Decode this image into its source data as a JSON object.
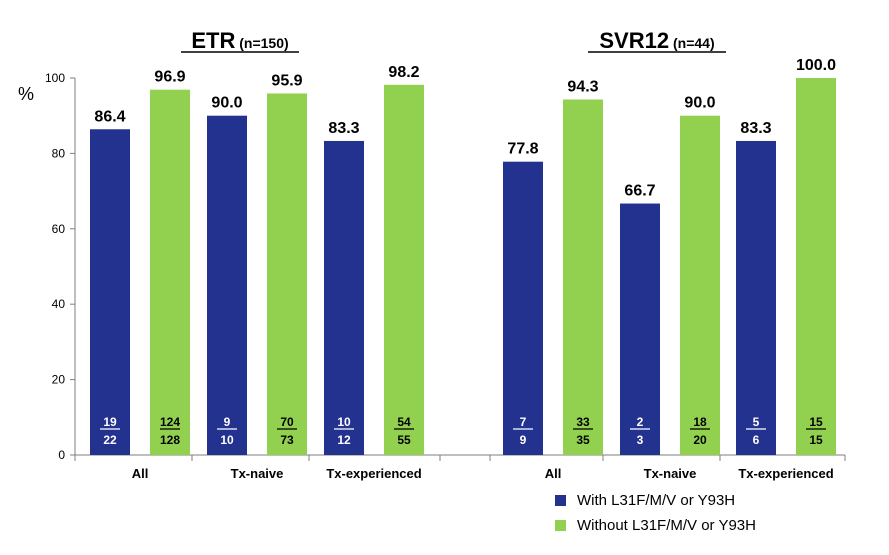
{
  "chart_data": {
    "type": "bar",
    "ylabel": "%",
    "ylim": [
      0,
      100
    ],
    "yticks": [
      0,
      20,
      40,
      60,
      80,
      100
    ],
    "colors": {
      "with": "#23318f",
      "without": "#92d050"
    },
    "series_names": [
      "With L31F/M/V or Y93H",
      "Without L31F/M/V or Y93H"
    ],
    "panels": [
      {
        "title": "ETR",
        "n_label": "(n=150)",
        "categories": [
          "All",
          "Tx-naive",
          "Tx-experienced"
        ],
        "series": [
          {
            "name": "With L31F/M/V or Y93H",
            "values": [
              86.4,
              90.0,
              83.3
            ],
            "labels": [
              "86.4",
              "90.0",
              "83.3"
            ],
            "numerators": [
              "19",
              "9",
              "10"
            ],
            "denominators": [
              "22",
              "10",
              "12"
            ]
          },
          {
            "name": "Without L31F/M/V or Y93H",
            "values": [
              96.9,
              95.9,
              98.2
            ],
            "labels": [
              "96.9",
              "95.9",
              "98.2"
            ],
            "numerators": [
              "124",
              "70",
              "54"
            ],
            "denominators": [
              "128",
              "73",
              "55"
            ]
          }
        ]
      },
      {
        "title": "SVR12",
        "n_label": "(n=44)",
        "categories": [
          "All",
          "Tx-naive",
          "Tx-experienced"
        ],
        "series": [
          {
            "name": "With L31F/M/V or Y93H",
            "values": [
              77.8,
              66.7,
              83.3
            ],
            "labels": [
              "77.8",
              "66.7",
              "83.3"
            ],
            "numerators": [
              "7",
              "2",
              "5"
            ],
            "denominators": [
              "9",
              "3",
              "6"
            ]
          },
          {
            "name": "Without L31F/M/V or Y93H",
            "values": [
              94.3,
              90.0,
              100.0
            ],
            "labels": [
              "94.3",
              "90.0",
              "100.0"
            ],
            "numerators": [
              "33",
              "18",
              "15"
            ],
            "denominators": [
              "35",
              "20",
              "15"
            ]
          }
        ]
      }
    ],
    "legend": [
      "With L31F/M/V or Y93H",
      "Without L31F/M/V or Y93H"
    ],
    "legend_position": "bottom-right",
    "grid": false
  }
}
